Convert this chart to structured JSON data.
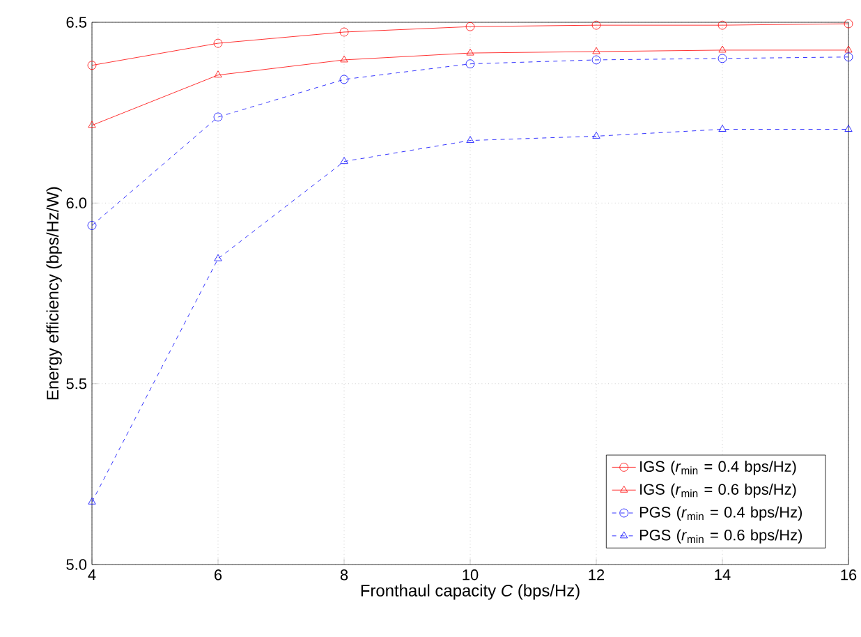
{
  "chart_data": {
    "type": "line",
    "xlabel": "Fronthaul capacity *C* (bps/Hz)",
    "ylabel": "Energy efficiency (bps/Hz/W)",
    "x": [
      4,
      6,
      8,
      10,
      12,
      14,
      16
    ],
    "series": [
      {
        "name": "IGS (*r*$_{min}$ = 0.4 bps/Hz)",
        "color": "#ff0000",
        "marker": "circle",
        "line_style": "solid",
        "values": [
          6.381,
          6.442,
          6.473,
          6.488,
          6.492,
          6.492,
          6.496
        ]
      },
      {
        "name": "IGS (*r*$_{min}$ = 0.6 bps/Hz)",
        "color": "#ff0000",
        "marker": "triangle",
        "line_style": "solid",
        "values": [
          6.215,
          6.354,
          6.396,
          6.415,
          6.419,
          6.423,
          6.423
        ]
      },
      {
        "name": "PGS (*r*$_{min}$ = 0.4 bps/Hz)",
        "color": "#0000ff",
        "marker": "circle",
        "line_style": "dashed",
        "values": [
          5.938,
          6.238,
          6.342,
          6.385,
          6.396,
          6.4,
          6.404
        ]
      },
      {
        "name": "PGS (*r*$_{min}$ = 0.6 bps/Hz)",
        "color": "#0000ff",
        "marker": "triangle",
        "line_style": "dashed",
        "values": [
          5.173,
          5.846,
          6.115,
          6.173,
          6.185,
          6.204,
          6.204
        ]
      }
    ],
    "xlim": [
      4,
      16
    ],
    "xticks": [
      4,
      6,
      8,
      10,
      12,
      14,
      16
    ],
    "ylim": [
      5,
      6.5
    ],
    "yticks": [
      {
        "value": 5,
        "label": "5.0"
      },
      5.5,
      {
        "value": 6,
        "label": "6.0"
      },
      6.5
    ],
    "grid": true,
    "legend": "bottom right"
  }
}
